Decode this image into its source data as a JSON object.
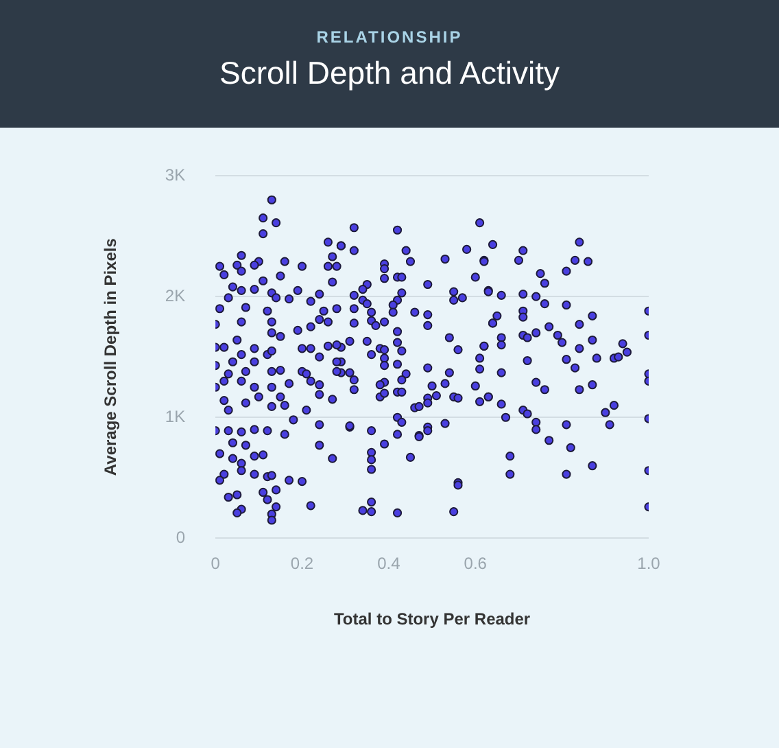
{
  "chart_data": {
    "type": "scatter",
    "subtitle": "RELATIONSHIP",
    "title": "Scroll Depth and Activity",
    "xlabel": "Total to Story Per Reader",
    "ylabel": "Average Scroll Depth in Pixels",
    "xlim": [
      0,
      1
    ],
    "xticks": [
      0,
      0.2,
      0.4,
      0.6,
      {
        "value": 1,
        "label": "1.0"
      }
    ],
    "ylim": [
      0,
      3000
    ],
    "yticks": [
      0,
      {
        "value": 1000,
        "label": "1K"
      },
      {
        "value": 2000,
        "label": "2K"
      },
      {
        "value": 3000,
        "label": "3K"
      }
    ],
    "grid": "y",
    "marker": "circle",
    "legend": false,
    "series": [
      {
        "color": "#4a3fe0",
        "x": [
          1.0,
          1.0,
          1.0,
          1.0,
          1.0,
          1.0,
          1.0,
          0.84,
          0.83,
          0.86,
          0.81,
          0.75,
          0.76,
          0.71,
          0.7,
          0.64,
          0.62,
          0.63,
          0.66,
          0.71,
          0.74,
          0.76,
          0.81,
          0.87,
          0.84,
          0.77,
          0.71,
          0.71,
          0.65,
          0.64,
          0.66,
          0.66,
          0.62,
          0.71,
          0.72,
          0.74,
          0.79,
          0.8,
          0.84,
          0.87,
          0.94,
          0.95,
          0.88,
          0.92,
          0.93,
          0.81,
          0.83,
          0.72,
          0.66,
          0.74,
          0.76,
          0.84,
          0.87,
          0.63,
          0.66,
          0.67,
          0.71,
          0.72,
          0.74,
          0.74,
          0.77,
          0.81,
          0.82,
          0.9,
          0.92,
          0.91,
          0.87,
          0.68,
          0.68,
          0.81,
          0.32,
          0.42,
          0.61,
          0.29,
          0.32,
          0.44,
          0.45,
          0.39,
          0.39,
          0.39,
          0.42,
          0.43,
          0.53,
          0.58,
          0.62,
          0.6,
          0.49,
          0.55,
          0.55,
          0.57,
          0.63,
          0.35,
          0.34,
          0.32,
          0.34,
          0.35,
          0.43,
          0.42,
          0.41,
          0.41,
          0.46,
          0.49,
          0.49,
          0.32,
          0.32,
          0.36,
          0.36,
          0.37,
          0.39,
          0.42,
          0.42,
          0.31,
          0.35,
          0.38,
          0.39,
          0.39,
          0.39,
          0.36,
          0.43,
          0.42,
          0.44,
          0.43,
          0.49,
          0.54,
          0.56,
          0.54,
          0.53,
          0.5,
          0.51,
          0.49,
          0.49,
          0.55,
          0.56,
          0.61,
          0.61,
          0.6,
          0.61,
          0.63,
          0.62,
          0.64,
          0.29,
          0.29,
          0.29,
          0.31,
          0.32,
          0.32,
          0.39,
          0.38,
          0.38,
          0.39,
          0.42,
          0.43,
          0.46,
          0.47,
          0.42,
          0.43,
          0.42,
          0.39,
          0.36,
          0.31,
          0.47,
          0.47,
          0.49,
          0.49,
          0.53,
          0.36,
          0.36,
          0.36,
          0.45,
          0.56,
          0.56,
          0.36,
          0.34,
          0.36,
          0.42,
          0.55,
          0.13,
          0.11,
          0.14,
          0.11,
          0.06,
          0.05,
          0.06,
          0.1,
          0.09,
          0.01,
          0.02,
          0.16,
          0.2,
          0.15,
          0.11,
          0.26,
          0.27,
          0.29,
          0.26,
          0.28,
          0.27,
          0.04,
          0.06,
          0.09,
          0.13,
          0.14,
          0.19,
          0.17,
          0.22,
          0.24,
          0.01,
          0.03,
          0.07,
          0.12,
          0.06,
          0.0,
          0.13,
          0.13,
          0.15,
          0.19,
          0.22,
          0.24,
          0.25,
          0.26,
          0.28,
          0.0,
          0.02,
          0.05,
          0.06,
          0.09,
          0.09,
          0.12,
          0.13,
          0.0,
          0.03,
          0.04,
          0.07,
          0.13,
          0.15,
          0.2,
          0.22,
          0.24,
          0.2,
          0.21,
          0.26,
          0.28,
          0.28,
          0.28,
          0.0,
          0.02,
          0.06,
          0.09,
          0.1,
          0.13,
          0.15,
          0.17,
          0.22,
          0.24,
          0.24,
          0.02,
          0.03,
          0.07,
          0.13,
          0.16,
          0.21,
          0.27,
          0.0,
          0.03,
          0.06,
          0.09,
          0.12,
          0.18,
          0.24,
          0.31,
          0.16,
          0.04,
          0.07,
          0.01,
          0.09,
          0.11,
          0.04,
          0.06,
          0.06,
          0.09,
          0.12,
          0.13,
          0.17,
          0.14,
          0.02,
          0.01,
          0.24,
          0.27,
          0.2,
          0.03,
          0.05,
          0.11,
          0.12,
          0.14,
          0.06,
          0.05,
          0.13,
          0.13,
          0.22
        ],
        "values": [
          1880,
          1680,
          1360,
          1300,
          990,
          560,
          260,
          2450,
          2300,
          2290,
          2210,
          2190,
          2110,
          2380,
          2300,
          2430,
          2300,
          2050,
          2010,
          2020,
          2000,
          1940,
          1930,
          1840,
          1770,
          1750,
          1880,
          1830,
          1840,
          1780,
          1660,
          1600,
          1590,
          1680,
          1660,
          1700,
          1680,
          1620,
          1570,
          1640,
          1610,
          1540,
          1490,
          1490,
          1500,
          1480,
          1410,
          1470,
          1370,
          1290,
          1230,
          1230,
          1270,
          1170,
          1110,
          1000,
          1060,
          1030,
          960,
          900,
          810,
          940,
          750,
          1040,
          1100,
          940,
          600,
          680,
          530,
          530,
          2570,
          2550,
          2610,
          2420,
          2380,
          2380,
          2290,
          2270,
          2230,
          2150,
          2160,
          2160,
          2310,
          2390,
          2290,
          2160,
          2100,
          2040,
          1970,
          1990,
          2040,
          2100,
          2060,
          2010,
          1970,
          1940,
          2030,
          1970,
          1930,
          1870,
          1870,
          1850,
          1760,
          1900,
          1780,
          1870,
          1800,
          1760,
          1790,
          1710,
          1620,
          1630,
          1630,
          1570,
          1560,
          1490,
          1430,
          1520,
          1550,
          1440,
          1360,
          1310,
          1410,
          1660,
          1560,
          1370,
          1280,
          1260,
          1180,
          1160,
          1120,
          1170,
          1160,
          1490,
          1400,
          1260,
          1130,
          1170,
          1590,
          1780,
          1580,
          1460,
          1370,
          1370,
          1310,
          1230,
          1290,
          1270,
          1170,
          1200,
          1210,
          1210,
          1080,
          1090,
          1000,
          960,
          860,
          780,
          890,
          920,
          850,
          840,
          920,
          890,
          950,
          710,
          650,
          570,
          670,
          460,
          440,
          300,
          230,
          220,
          210,
          220,
          2800,
          2650,
          2610,
          2520,
          2340,
          2260,
          2210,
          2290,
          2260,
          2250,
          2180,
          2290,
          2250,
          2170,
          2130,
          2450,
          2330,
          2420,
          2250,
          2250,
          2120,
          2080,
          2050,
          2060,
          2030,
          1990,
          2050,
          1980,
          1960,
          2020,
          1900,
          1990,
          1910,
          1880,
          1790,
          1770,
          1790,
          1700,
          1670,
          1720,
          1750,
          1810,
          1880,
          1790,
          1900,
          1580,
          1580,
          1640,
          1520,
          1570,
          1460,
          1520,
          1550,
          1430,
          1360,
          1460,
          1380,
          1380,
          1390,
          1570,
          1570,
          1500,
          1380,
          1360,
          1590,
          1600,
          1460,
          1380,
          1250,
          1300,
          1300,
          1250,
          1170,
          1250,
          1170,
          1280,
          1300,
          1270,
          1190,
          1140,
          1060,
          1120,
          1090,
          1100,
          1060,
          1150,
          890,
          890,
          880,
          900,
          890,
          980,
          940,
          930,
          860,
          790,
          770,
          700,
          680,
          690,
          660,
          620,
          560,
          530,
          510,
          520,
          480,
          400,
          530,
          480,
          770,
          660,
          470,
          340,
          360,
          380,
          320,
          260,
          240,
          210,
          200,
          150,
          270
        ]
      }
    ]
  }
}
